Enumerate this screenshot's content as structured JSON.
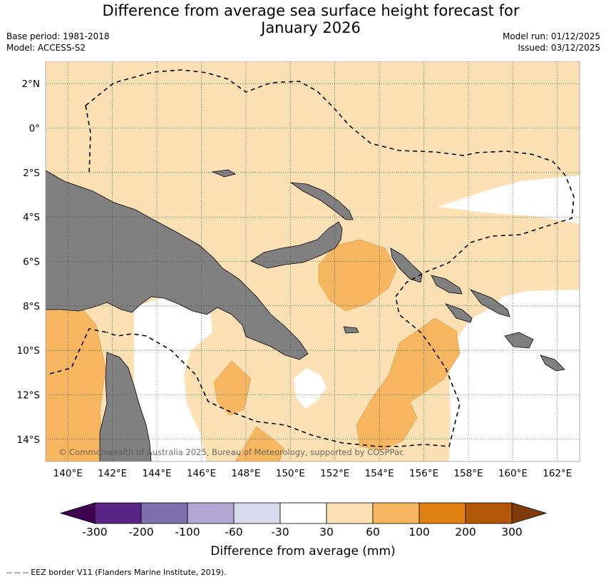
{
  "title": "Difference from average sea surface height forecast for January 2026",
  "base_period": "Base period: 1981-2018",
  "model": "Model: ACCESS-S2",
  "model_run": "Model run: 01/12/2025",
  "issued": "Issued: 03/12/2025",
  "copyright": "© Commonwealth of Australia 2025, Bureau of Meteorology, supported by COSPPac",
  "footnote": "-- -- -- EEZ border V11 (Flanders Marine Institute, 2019).",
  "map": {
    "lon_range": [
      139,
      163
    ],
    "lat_range": [
      -15,
      3
    ],
    "lon_ticks": [
      "140°E",
      "142°E",
      "144°E",
      "146°E",
      "148°E",
      "150°E",
      "152°E",
      "154°E",
      "156°E",
      "158°E",
      "160°E",
      "162°E"
    ],
    "lat_ticks": [
      "2°N",
      "0°",
      "2°S",
      "4°S",
      "6°S",
      "8°S",
      "10°S",
      "12°S",
      "14°S"
    ],
    "grid": true,
    "land_color": "#808080",
    "colors": {
      "30_60": "#fde0b3",
      "60_100": "#f8b660",
      "-30_30": "#ffffff"
    }
  },
  "colorbar": {
    "label": "Difference from average (mm)",
    "ticks": [
      "-300",
      "-200",
      "-100",
      "-60",
      "-30",
      "30",
      "60",
      "100",
      "200",
      "300"
    ],
    "colors": [
      "#3f0050",
      "#5a2487",
      "#7f6fac",
      "#b0a8d3",
      "#d9dbec",
      "#ffffff",
      "#fde0b3",
      "#f8b660",
      "#e08010",
      "#b35806",
      "#7f3b08"
    ]
  }
}
